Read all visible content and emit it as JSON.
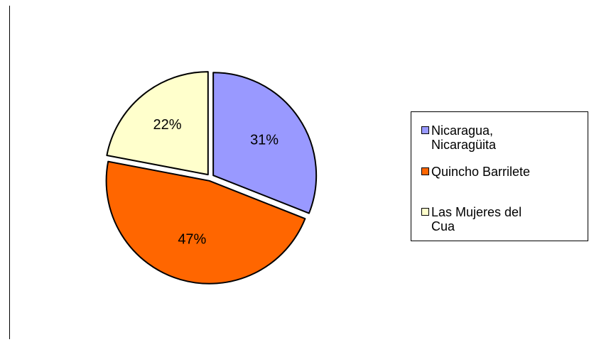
{
  "chart_data": {
    "type": "pie",
    "categories": [
      "Nicaragua, Nicaragüita",
      "Quincho Barrilete",
      "Las Mujeres del Cua"
    ],
    "values": [
      31,
      47,
      22
    ],
    "labels": [
      "31%",
      "47%",
      "22%"
    ],
    "colors": [
      "#9999ff",
      "#ff6600",
      "#ffffcc"
    ],
    "legend": {
      "placement": "right",
      "entries": [
        "Nicaragua,\nNicaragüita",
        "Quincho Barrilete",
        "Las Mujeres del\nCua"
      ]
    },
    "exploded": true
  }
}
